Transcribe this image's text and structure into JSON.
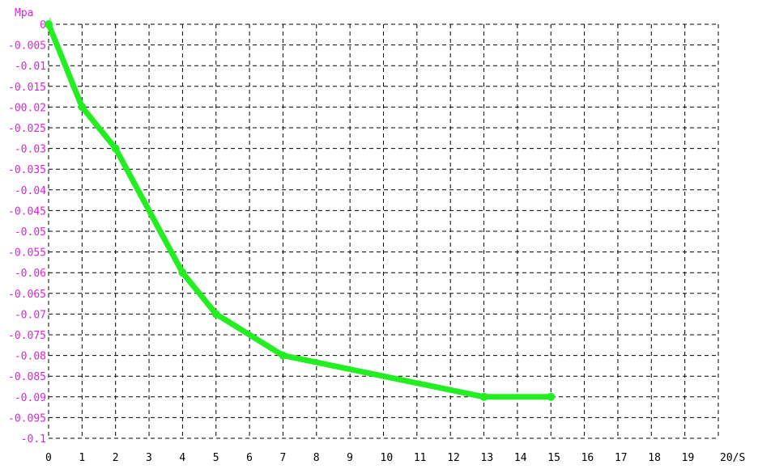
{
  "chart_data": {
    "type": "line",
    "ylabel": "Mpa",
    "x_end_label": "20/S",
    "xlim": [
      0,
      20
    ],
    "ylim": [
      -0.1,
      0
    ],
    "grid": true,
    "x_ticks": [
      "0",
      "1",
      "2",
      "3",
      "4",
      "5",
      "6",
      "7",
      "8",
      "9",
      "10",
      "11",
      "12",
      "13",
      "14",
      "15",
      "16",
      "17",
      "18",
      "19"
    ],
    "y_ticks": [
      "0",
      "-0.005",
      "-0.01",
      "-0.015",
      "-00.02",
      "-0.025",
      "-0.03",
      "-0.035",
      "-0.04",
      "-0.045",
      "-0.05",
      "-0.055",
      "-0.06",
      "-0.065",
      "-0.07",
      "-0.075",
      "-0.08",
      "-0.085",
      "-0.09",
      "-0.095",
      "-0.1"
    ],
    "series": [
      {
        "x": [
          0,
          1,
          2,
          4,
          5,
          7,
          13,
          15
        ],
        "y": [
          0,
          -0.02,
          -0.03,
          -0.06,
          -0.07,
          -0.08,
          -0.09,
          -0.09
        ],
        "color": "#22ee22"
      }
    ],
    "colors": {
      "label": "#e020e0",
      "line": "#22ee22",
      "grid": "#000000"
    }
  }
}
